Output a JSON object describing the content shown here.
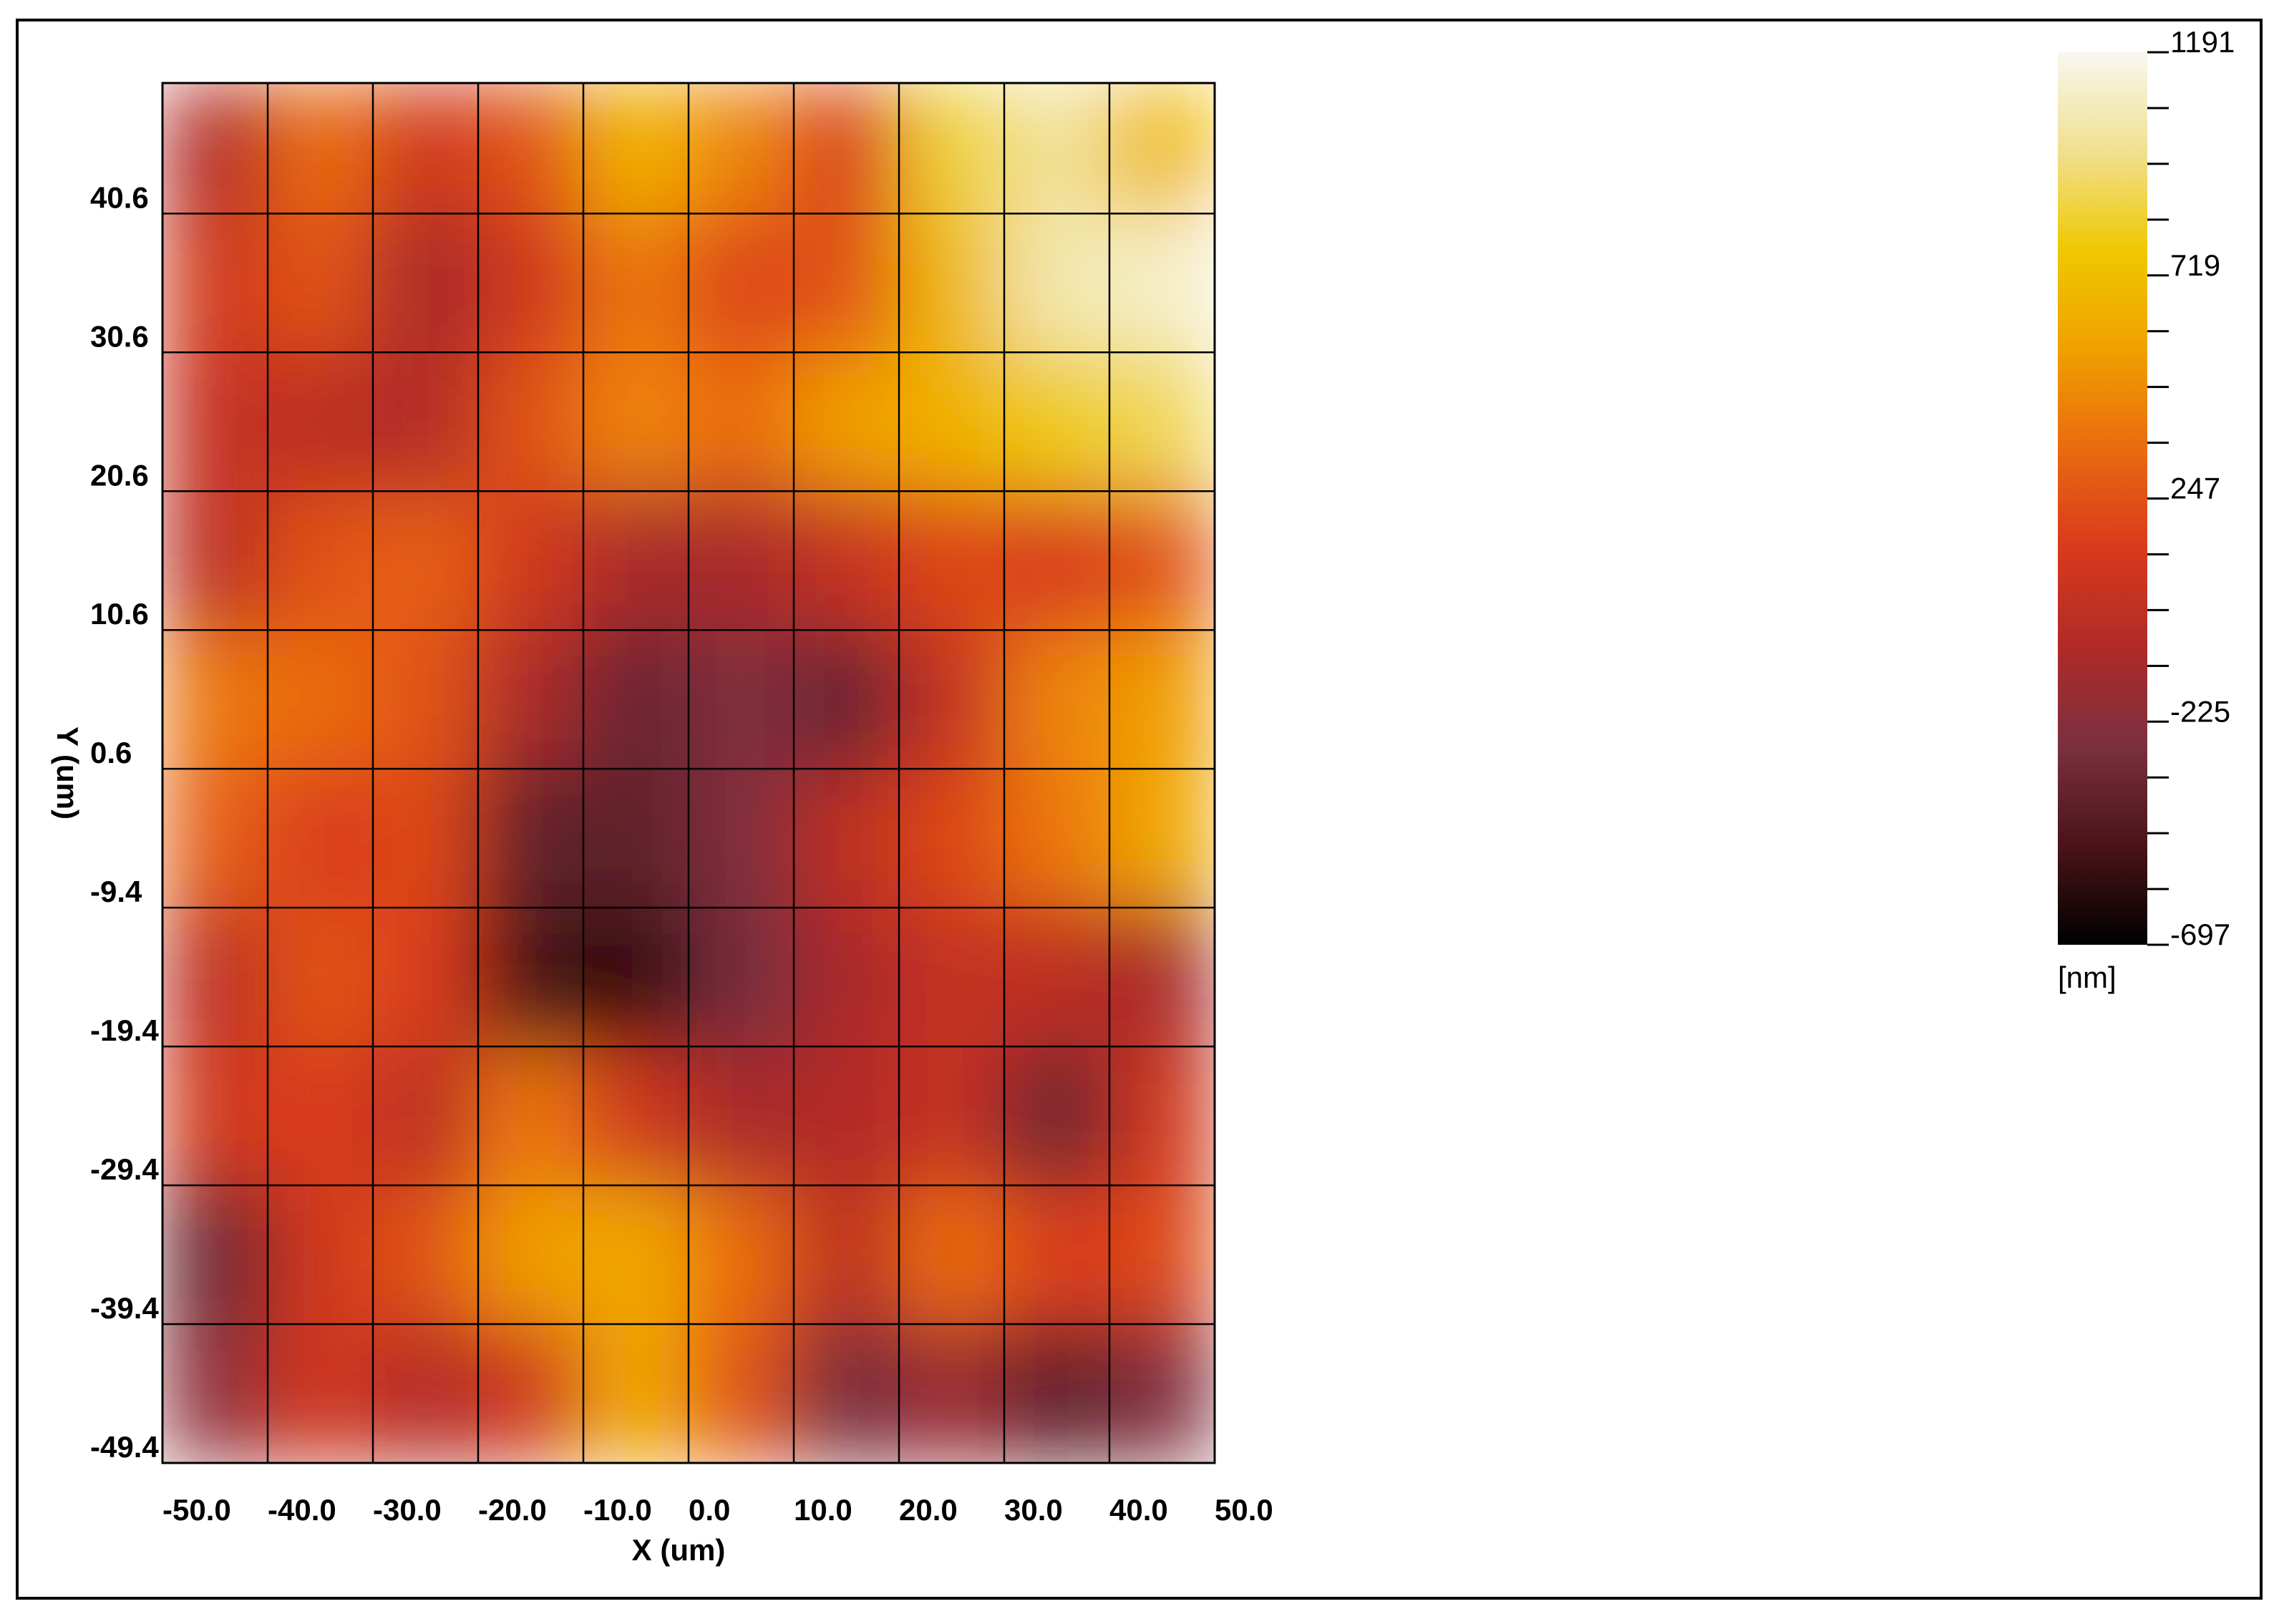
{
  "chart_data": {
    "type": "heatmap",
    "x_label": "X (um)",
    "y_label": "Y (um)",
    "xlim": [
      -50,
      50
    ],
    "xticks": [
      {
        "value": -50,
        "label": "-50.0"
      },
      {
        "value": -40,
        "label": "-40.0"
      },
      {
        "value": -30,
        "label": "-30.0"
      },
      {
        "value": -20,
        "label": "-20.0"
      },
      {
        "value": -10,
        "label": "-10.0"
      },
      {
        "value": 0,
        "label": "0.0"
      },
      {
        "value": 10,
        "label": "10.0"
      },
      {
        "value": 20,
        "label": "20.0"
      },
      {
        "value": 30,
        "label": "30.0"
      },
      {
        "value": 40,
        "label": "40.0"
      },
      {
        "value": 50,
        "label": "50.0"
      }
    ],
    "ylim": [
      -49.4,
      50
    ],
    "yticks": [
      40.6,
      30.6,
      20.6,
      10.6,
      0.6,
      -9.4,
      -19.4,
      -29.4,
      -39.4,
      -49.4
    ],
    "grid": true,
    "z": [
      [
        -50,
        350,
        100,
        250,
        650,
        450,
        150,
        850,
        1000,
        700
      ],
      [
        100,
        250,
        -100,
        100,
        400,
        200,
        250,
        700,
        1050,
        1100
      ],
      [
        50,
        0,
        -50,
        250,
        450,
        350,
        550,
        650,
        800,
        900
      ],
      [
        0,
        250,
        300,
        100,
        -100,
        -100,
        50,
        200,
        150,
        250
      ],
      [
        400,
        350,
        250,
        -100,
        -350,
        -250,
        -350,
        50,
        450,
        550
      ],
      [
        300,
        150,
        200,
        -400,
        -400,
        -250,
        0,
        200,
        400,
        600
      ],
      [
        0,
        250,
        150,
        -500,
        -550,
        -300,
        -100,
        50,
        0,
        -100
      ],
      [
        100,
        150,
        0,
        400,
        100,
        -100,
        -50,
        50,
        -350,
        100
      ],
      [
        -350,
        100,
        250,
        550,
        600,
        350,
        0,
        350,
        150,
        200
      ],
      [
        -200,
        100,
        -50,
        100,
        600,
        250,
        -300,
        -150,
        -400,
        -250
      ]
    ],
    "colorbar": {
      "unit": "[nm]",
      "lim": [
        -697,
        1191
      ],
      "ticks": [
        -697,
        -225,
        247,
        719,
        1191
      ],
      "minor_ticks": [
        -579,
        -461,
        -343,
        -107,
        11,
        129,
        365,
        483,
        601,
        837,
        955,
        1073
      ],
      "colors": [
        "#000000",
        "#4a1418",
        "#7a3040",
        "#b02a28",
        "#d83a1c",
        "#ea6a10",
        "#f0a000",
        "#efc800",
        "#f0e090",
        "#f8f8f0"
      ]
    }
  }
}
